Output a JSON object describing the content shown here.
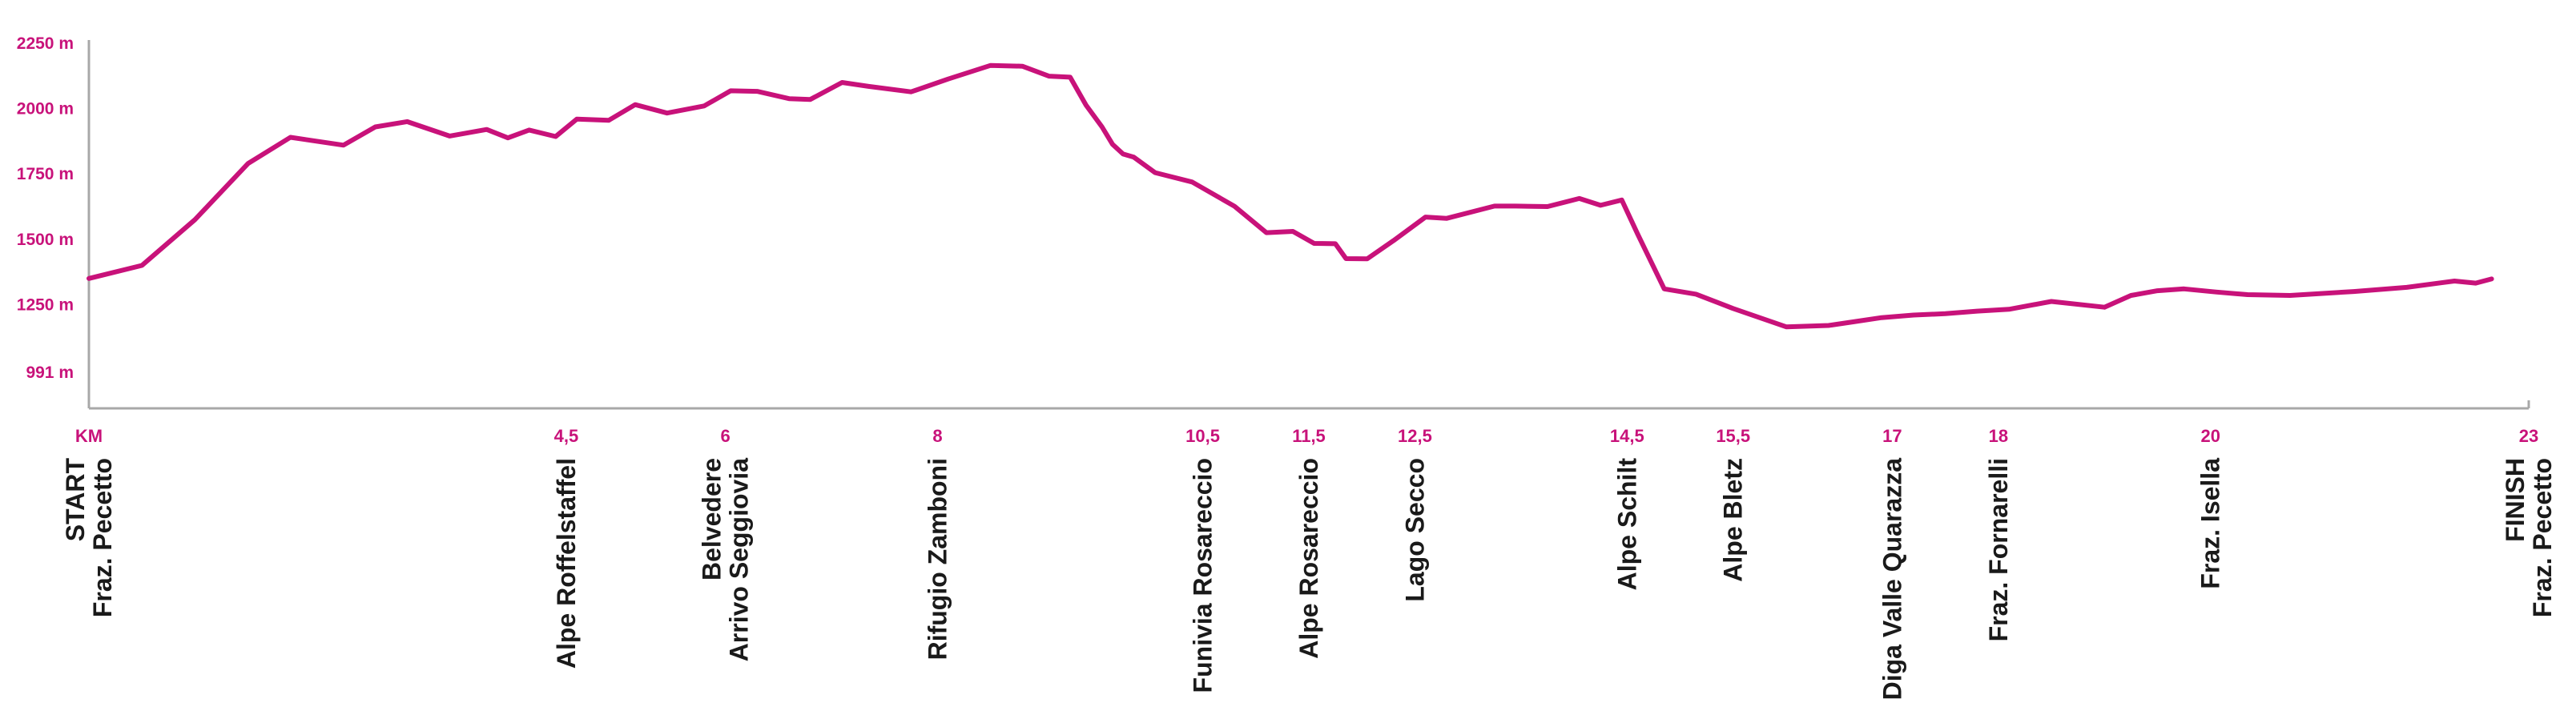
{
  "chart_data": {
    "type": "line",
    "title": "",
    "xlabel": "KM",
    "ylabel": "",
    "xlim": [
      0,
      23
    ],
    "ylim": [
      853,
      2250
    ],
    "grid": false,
    "legend": "none",
    "colors": {
      "line": "#c8127a",
      "tick_text": "#c8127a",
      "axis": "#a8a8a8",
      "label_text": "#1a1a1a"
    },
    "y_ticks": [
      {
        "value": 991,
        "label": "991 m"
      },
      {
        "value": 1250,
        "label": "1250 m"
      },
      {
        "value": 1500,
        "label": "1500 m"
      },
      {
        "value": 1750,
        "label": "1750 m"
      },
      {
        "value": 2000,
        "label": "2000 m"
      },
      {
        "value": 2250,
        "label": "2250 m"
      }
    ],
    "x_ticks": [
      {
        "value": 0,
        "label": "KM"
      },
      {
        "value": 4.5,
        "label": "4,5"
      },
      {
        "value": 6,
        "label": "6"
      },
      {
        "value": 8,
        "label": "8"
      },
      {
        "value": 10.5,
        "label": "10,5"
      },
      {
        "value": 11.5,
        "label": "11,5"
      },
      {
        "value": 12.5,
        "label": "12,5"
      },
      {
        "value": 14.5,
        "label": "14,5"
      },
      {
        "value": 15.5,
        "label": "15,5"
      },
      {
        "value": 17,
        "label": "17"
      },
      {
        "value": 18,
        "label": "18"
      },
      {
        "value": 20,
        "label": "20"
      },
      {
        "value": 23,
        "label": "23"
      }
    ],
    "waypoints": [
      {
        "km": 0,
        "lines": [
          "START",
          "Fraz. Pecetto"
        ]
      },
      {
        "km": 4.5,
        "lines": [
          "Alpe Roffelstaffel"
        ]
      },
      {
        "km": 6,
        "lines": [
          "Belvedere",
          "Arrivo Seggiovia"
        ]
      },
      {
        "km": 8,
        "lines": [
          "Rifugio Zamboni"
        ]
      },
      {
        "km": 10.5,
        "lines": [
          "Funivia Rosareccio"
        ]
      },
      {
        "km": 11.5,
        "lines": [
          "Alpe Rosareccio"
        ]
      },
      {
        "km": 12.5,
        "lines": [
          "Lago Secco"
        ]
      },
      {
        "km": 14.5,
        "lines": [
          "Alpe Schilt"
        ]
      },
      {
        "km": 15.5,
        "lines": [
          "Alpe Bletz"
        ]
      },
      {
        "km": 17,
        "lines": [
          "Diga Valle Quarazza"
        ]
      },
      {
        "km": 18,
        "lines": [
          "Fraz. Fornarelli"
        ]
      },
      {
        "km": 20,
        "lines": [
          "Fraz. Isella"
        ]
      },
      {
        "km": 23,
        "lines": [
          "FINISH",
          "Fraz. Pecetto"
        ]
      }
    ],
    "series": [
      {
        "x": [
          0,
          0.5,
          1.0,
          1.5,
          1.9,
          2.4,
          2.7,
          3.0,
          3.4,
          3.75,
          3.95,
          4.15,
          4.4,
          4.6,
          4.9,
          5.15,
          5.45,
          5.8,
          6.05,
          6.3,
          6.6,
          6.8,
          7.1,
          7.35,
          7.75,
          8.1,
          8.5,
          8.8,
          9.05,
          9.25,
          9.4,
          9.55,
          9.65,
          9.75,
          9.85,
          10.05,
          10.4,
          10.8,
          11.1,
          11.35,
          11.55,
          11.75,
          11.85,
          12.05,
          12.3,
          12.6,
          12.8,
          13.25,
          13.45,
          13.75,
          14.05,
          14.25,
          14.45,
          14.6,
          14.85,
          15.15,
          15.5,
          16.0,
          16.4,
          16.65,
          16.9,
          17.2,
          17.5,
          17.8,
          18.1,
          18.5,
          19.0,
          19.25,
          19.5,
          19.75,
          20.05,
          20.35,
          20.75,
          21.35,
          21.85,
          22.3,
          22.5,
          22.65
        ],
        "y": [
          1350,
          1400,
          1575,
          1790,
          1890,
          1860,
          1930,
          1950,
          1895,
          1920,
          1888,
          1918,
          1893,
          1960,
          1955,
          2015,
          1983,
          2010,
          2068,
          2066,
          2038,
          2035,
          2100,
          2085,
          2064,
          2113,
          2165,
          2162,
          2124,
          2120,
          2013,
          1930,
          1863,
          1826,
          1814,
          1755,
          1719,
          1626,
          1525,
          1530,
          1484,
          1483,
          1426,
          1425,
          1495,
          1585,
          1580,
          1627,
          1627,
          1625,
          1656,
          1630,
          1650,
          1520,
          1310,
          1290,
          1235,
          1165,
          1170,
          1185,
          1200,
          1210,
          1215,
          1225,
          1232,
          1262,
          1240,
          1285,
          1303,
          1310,
          1298,
          1288,
          1285,
          1300,
          1316,
          1340,
          1332,
          1348
        ]
      }
    ]
  }
}
